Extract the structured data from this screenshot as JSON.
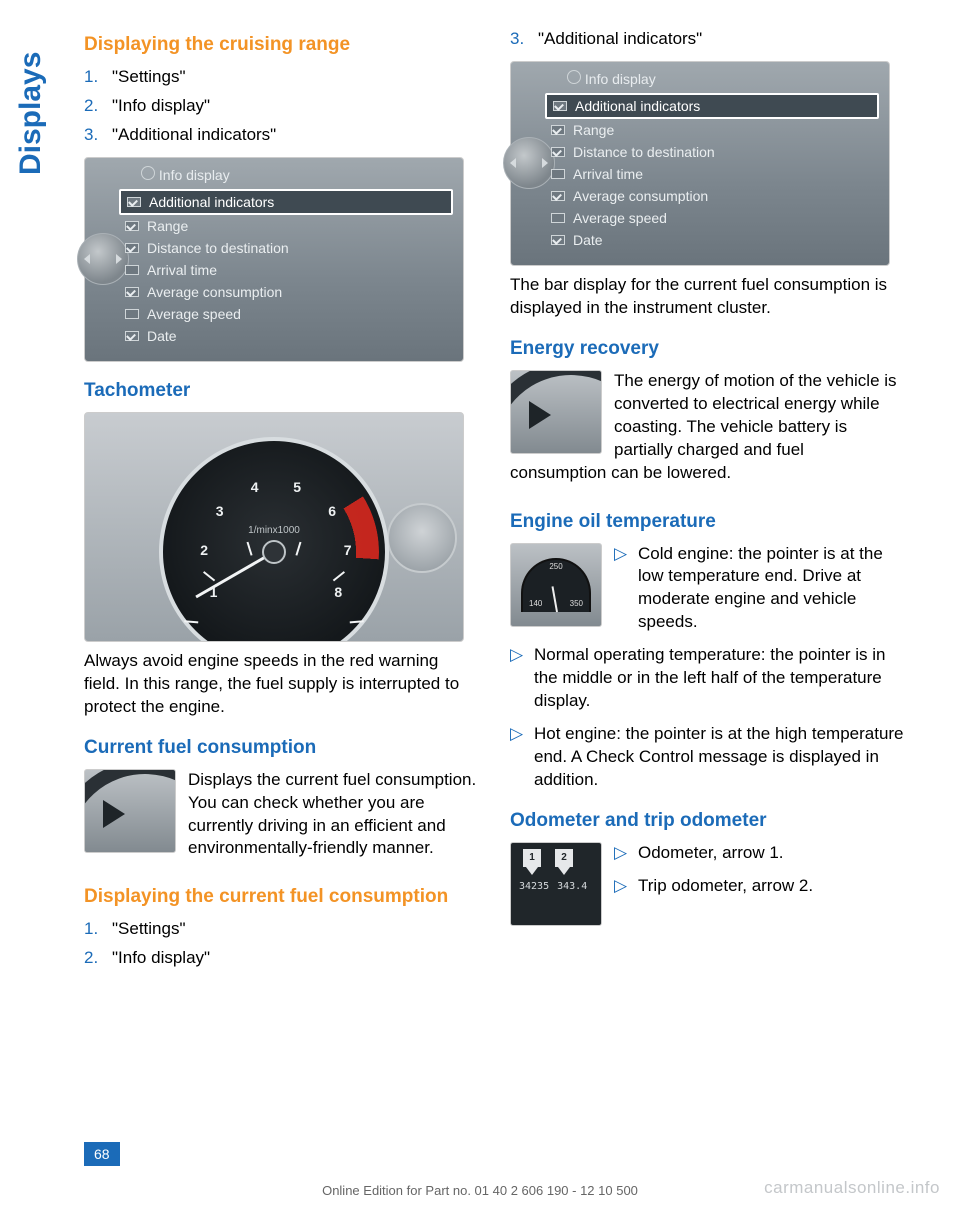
{
  "sideLabel": "Displays",
  "left": {
    "h1": "Displaying the cruising range",
    "steps1": [
      "\"Settings\"",
      "\"Info display\"",
      "\"Additional indicators\""
    ],
    "menu": {
      "title": "Info display",
      "items": [
        {
          "label": "Additional indicators",
          "hl": true
        },
        {
          "label": "Range"
        },
        {
          "label": "Distance to destination"
        },
        {
          "label": "Arrival time",
          "unchecked": true
        },
        {
          "label": "Average consumption"
        },
        {
          "label": "Average speed",
          "unchecked": true
        },
        {
          "label": "Date"
        }
      ]
    },
    "h2": "Tachometer",
    "tachoNums": [
      "1",
      "2",
      "3",
      "4",
      "5",
      "6",
      "7",
      "8"
    ],
    "tachoLabel": "1/minx1000",
    "tachoPara": "Always avoid engine speeds in the red warning field. In this range, the fuel supply is interrupted to protect the engine.",
    "h3": "Current fuel consumption",
    "cfcPara": "Displays the current fuel consumption. You can check whether you are currently driving in an efficient and environmentally-friendly manner.",
    "h4": "Displaying the current fuel consumption",
    "steps2": [
      "\"Settings\"",
      "\"Info display\""
    ]
  },
  "right": {
    "steps3_start": 3,
    "steps3": [
      "\"Additional indicators\""
    ],
    "menu": {
      "title": "Info display",
      "items": [
        {
          "label": "Additional indicators",
          "hl": true
        },
        {
          "label": "Range"
        },
        {
          "label": "Distance to destination"
        },
        {
          "label": "Arrival time",
          "unchecked": true
        },
        {
          "label": "Average consumption"
        },
        {
          "label": "Average speed",
          "unchecked": true
        },
        {
          "label": "Date"
        }
      ]
    },
    "menuPara": "The bar display for the current fuel consumption is displayed in the instrument cluster.",
    "h5": "Energy recovery",
    "erPara": "The energy of motion of the vehicle is converted to electrical energy while coasting. The vehicle battery is partially charged and fuel consumption can be lowered.",
    "h6": "Engine oil temperature",
    "oilTemps": {
      "t1": "140",
      "t2": "250",
      "t3": "350",
      "unit": "°F"
    },
    "oilBullets": [
      "Cold engine: the pointer is at the low temperature end. Drive at moderate engine and vehicle speeds.",
      "Normal operating temperature: the pointer is in the middle or in the left half of the temperature display."
    ],
    "oilBulletFull": "Hot engine: the pointer is at the high temperature end. A Check Control message is displayed in addition.",
    "h7": "Odometer and trip odometer",
    "odoVals": {
      "a": "34235",
      "b": "343.4"
    },
    "odoBullets": [
      "Odometer, arrow 1.",
      "Trip odometer, arrow 2."
    ]
  },
  "footer": {
    "pageNum": "68",
    "edition": "Online Edition for Part no. 01 40 2 606 190 - 12 10 500",
    "watermark": "carmanualsonline.info"
  },
  "colors": {
    "blue": "#1b6bb8",
    "orange": "#f39325"
  }
}
